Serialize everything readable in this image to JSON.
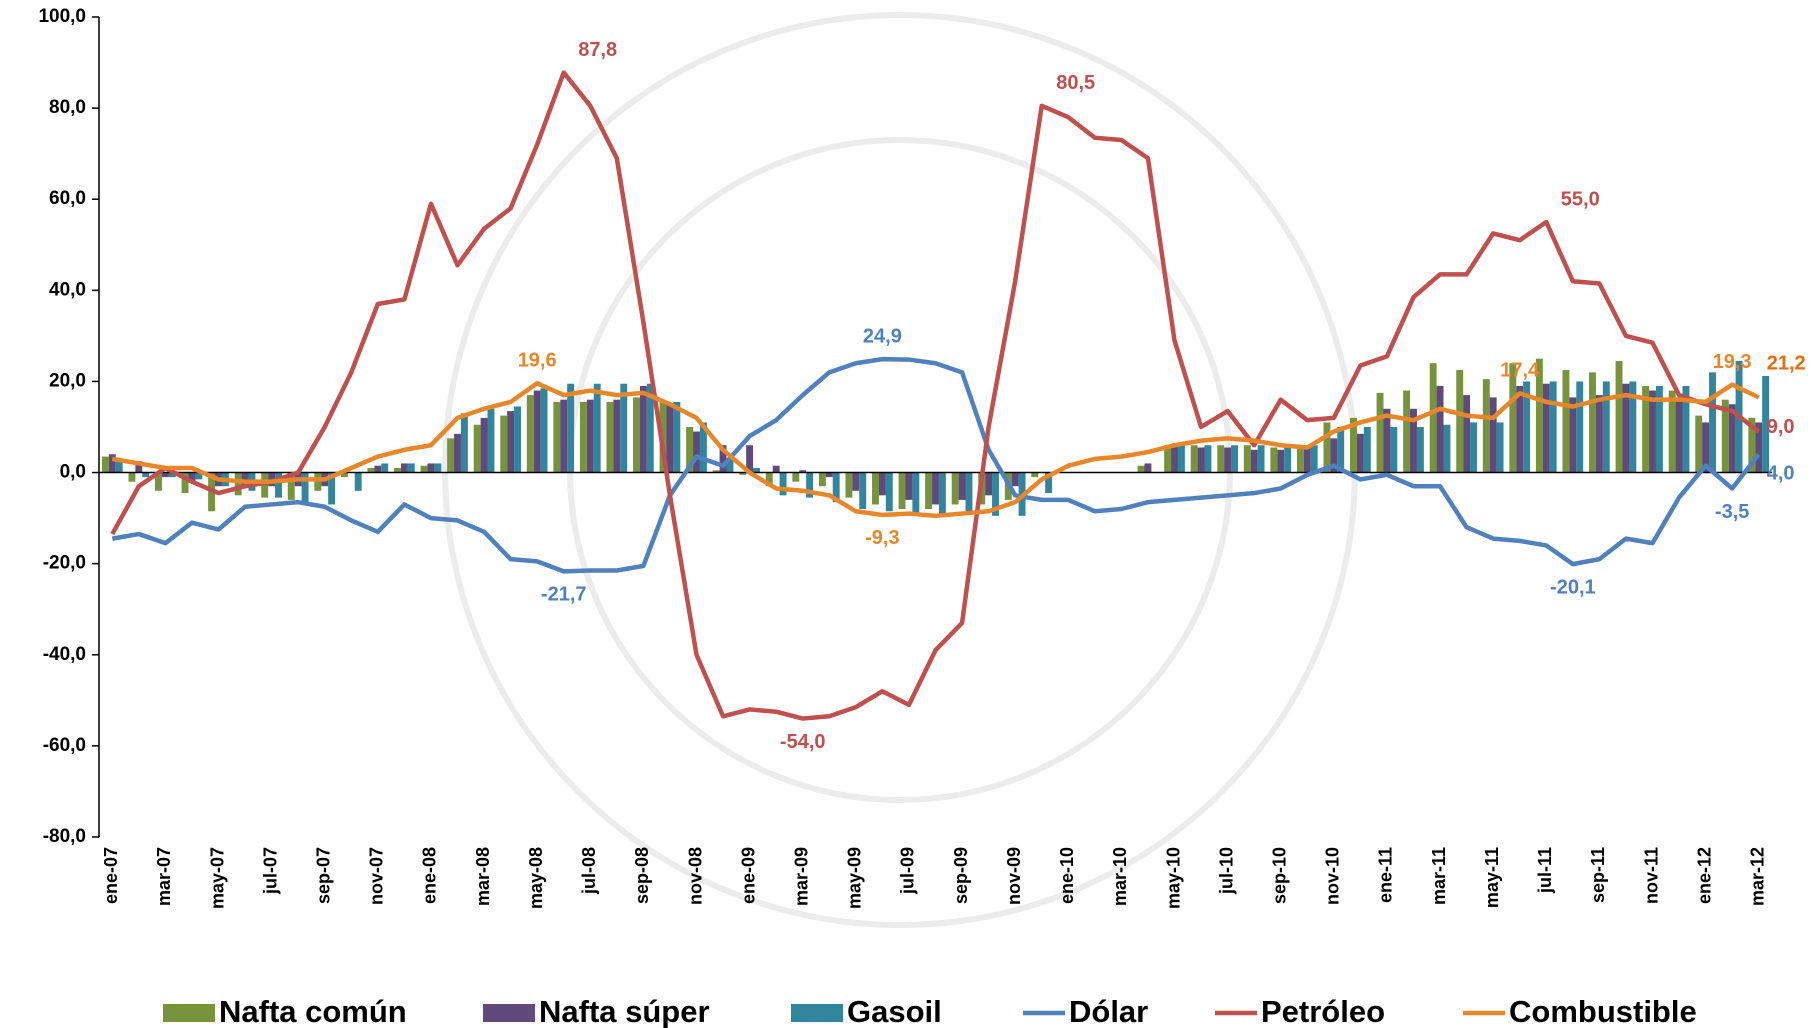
{
  "chart_data": {
    "type": "combo",
    "categories": [
      "ene-07",
      null,
      "mar-07",
      null,
      "may-07",
      null,
      "jul-07",
      null,
      "sep-07",
      null,
      "nov-07",
      null,
      "ene-08",
      null,
      "mar-08",
      null,
      "may-08",
      null,
      "jul-08",
      null,
      "sep-08",
      null,
      "nov-08",
      null,
      "ene-09",
      null,
      "mar-09",
      null,
      "may-09",
      null,
      "jul-09",
      null,
      "sep-09",
      null,
      "nov-09",
      null,
      "ene-10",
      null,
      "mar-10",
      null,
      "may-10",
      null,
      "jul-10",
      null,
      "sep-10",
      null,
      "nov-10",
      null,
      "ene-11",
      null,
      "mar-11",
      null,
      "may-11",
      null,
      "jul-11",
      null,
      "sep-11",
      null,
      "nov-11",
      null,
      "ene-12",
      null,
      "mar-12"
    ],
    "ylim": [
      -80,
      100
    ],
    "yticks": [
      {
        "value": -80,
        "label": "-80,0"
      },
      {
        "value": -60,
        "label": "-60,0"
      },
      {
        "value": -40,
        "label": "-40,0"
      },
      {
        "value": -20,
        "label": "-20,0"
      },
      {
        "value": 0,
        "label": "0,0"
      },
      {
        "value": 20,
        "label": "20,0"
      },
      {
        "value": 40,
        "label": "40,0"
      },
      {
        "value": 60,
        "label": "60,0"
      },
      {
        "value": 80,
        "label": "80,0"
      },
      {
        "value": 100,
        "label": "100,0"
      }
    ],
    "series": [
      {
        "name": "Nafta común",
        "type": "bar",
        "color": "#77933c",
        "values": [
          3.5,
          -2,
          -4,
          -4.5,
          -8.5,
          -5,
          -5.5,
          -6,
          -4,
          -1,
          1,
          1,
          1.5,
          7.5,
          10.5,
          12.5,
          17,
          15.5,
          15.5,
          15.5,
          16.5,
          15.5,
          10,
          0.5,
          -0.5,
          -3,
          -2,
          -3,
          -5.5,
          -7,
          -8,
          -8,
          -7,
          -7,
          -6,
          -1,
          0,
          0,
          0,
          1.5,
          6,
          6,
          6,
          6,
          5.5,
          6,
          11,
          12,
          17.5,
          18,
          24,
          22.5,
          20.5,
          24,
          25,
          22.5,
          22,
          24.5,
          19,
          18,
          12.5,
          16,
          12
        ]
      },
      {
        "name": "Nafta súper",
        "type": "bar",
        "color": "#604a7b",
        "values": [
          4,
          2.5,
          -1,
          -2,
          -3,
          -3,
          -3,
          -3,
          -3,
          0,
          1.5,
          2,
          2,
          8.5,
          12,
          13.5,
          18,
          16,
          16,
          16,
          19,
          15,
          9,
          6,
          6,
          1.5,
          0.5,
          -1,
          -4,
          -5,
          -6,
          -7,
          -6,
          -5,
          -3,
          0,
          0,
          0,
          0,
          2,
          6,
          5.5,
          5.5,
          5,
          5,
          5.5,
          7.5,
          8.5,
          14,
          14,
          19,
          17,
          16.5,
          19,
          19.5,
          16.5,
          17,
          19.5,
          18,
          16,
          11,
          15,
          11
        ]
      },
      {
        "name": "Gasoil",
        "type": "bar",
        "color": "#31859c",
        "label_color": "#e46c0a",
        "values": [
          3,
          -1,
          -1,
          -1.5,
          -3,
          -4,
          -5.5,
          -6.5,
          -7,
          -4,
          2,
          2,
          2,
          13,
          14,
          14.5,
          18.5,
          19.5,
          19.5,
          19.5,
          19.5,
          15.5,
          11,
          3,
          1,
          -5,
          -5.5,
          -6.5,
          -8,
          -8.5,
          -9,
          -9,
          -9,
          -9.5,
          -9.5,
          -4.5,
          0,
          0,
          0,
          0,
          6,
          6,
          6,
          6,
          6,
          6,
          10,
          10,
          10,
          10,
          10.5,
          11,
          11,
          20,
          20,
          20,
          20,
          20,
          19,
          19,
          22,
          24.5,
          21.2
        ],
        "value_labels": [
          null,
          null,
          null,
          null,
          null,
          null,
          null,
          null,
          null,
          null,
          null,
          null,
          null,
          null,
          null,
          null,
          null,
          null,
          null,
          null,
          null,
          null,
          null,
          null,
          null,
          null,
          null,
          null,
          null,
          null,
          null,
          null,
          null,
          null,
          null,
          null,
          null,
          null,
          null,
          null,
          null,
          null,
          null,
          null,
          null,
          null,
          null,
          null,
          null,
          null,
          null,
          null,
          null,
          null,
          null,
          null,
          null,
          null,
          null,
          null,
          null,
          null,
          "21,2"
        ]
      },
      {
        "name": "Dólar",
        "type": "line",
        "color": "#4f81bd",
        "values": [
          -14.5,
          -13.5,
          -15.5,
          -11,
          -12.5,
          -7.5,
          -7,
          -6.5,
          -7.5,
          -10.5,
          -13,
          -7,
          -10,
          -10.5,
          -13,
          -19,
          -19.5,
          -21.7,
          -21.5,
          -21.5,
          -20.5,
          -5,
          3.5,
          1.5,
          8,
          11.5,
          17,
          22,
          24,
          24.9,
          24.8,
          24,
          22,
          5,
          -5,
          -6,
          -6,
          -8.5,
          -8,
          -6.5,
          -6,
          -5.5,
          -5,
          -4.5,
          -3.5,
          -0.5,
          1.5,
          -1.5,
          -0.5,
          -3,
          -3,
          -12,
          -14.5,
          -15,
          -16,
          -20.1,
          -19,
          -14.5,
          -15.5,
          -5.5,
          1.5,
          -3.5,
          4.0
        ],
        "value_labels": [
          null,
          null,
          null,
          null,
          null,
          null,
          null,
          null,
          null,
          null,
          null,
          null,
          null,
          null,
          null,
          null,
          null,
          "-21,7",
          null,
          null,
          null,
          null,
          null,
          null,
          null,
          null,
          null,
          null,
          null,
          "24,9",
          null,
          null,
          null,
          null,
          null,
          null,
          null,
          null,
          null,
          null,
          null,
          null,
          null,
          null,
          null,
          null,
          null,
          null,
          null,
          null,
          null,
          null,
          null,
          null,
          null,
          "-20,1",
          null,
          null,
          null,
          null,
          null,
          "-3,5",
          "4,0"
        ]
      },
      {
        "name": "Petróleo",
        "type": "line",
        "color": "#c0504d",
        "values": [
          -13.5,
          -3,
          1,
          -2,
          -4.5,
          -3,
          -2,
          0,
          10,
          22,
          37,
          38,
          59,
          45.5,
          53.5,
          58,
          72,
          87.8,
          80.5,
          69,
          33,
          -5,
          -40,
          -53.5,
          -52,
          -52.5,
          -54.0,
          -53.5,
          -51.5,
          -48,
          -51,
          -39,
          -33,
          10,
          42,
          80.5,
          78,
          73.5,
          73,
          69,
          29,
          10,
          13.5,
          6,
          16,
          11.5,
          12,
          23.5,
          25.5,
          38.5,
          43.5,
          43.5,
          52.5,
          51,
          55.0,
          42,
          41.5,
          30,
          28.5,
          17,
          15,
          13.5,
          9.0
        ],
        "value_labels": [
          null,
          null,
          null,
          null,
          null,
          null,
          null,
          null,
          null,
          null,
          null,
          null,
          null,
          null,
          null,
          null,
          null,
          "87,8",
          null,
          null,
          null,
          null,
          null,
          null,
          null,
          null,
          "-54,0",
          null,
          null,
          null,
          null,
          null,
          null,
          null,
          null,
          "80,5",
          null,
          null,
          null,
          null,
          null,
          null,
          null,
          null,
          null,
          null,
          null,
          null,
          null,
          null,
          null,
          null,
          null,
          null,
          "55,0",
          null,
          null,
          null,
          null,
          null,
          null,
          null,
          "9,0"
        ]
      },
      {
        "name": "Combustible",
        "type": "line",
        "color": "#e8872a",
        "values": [
          3,
          2,
          1,
          1,
          -1.5,
          -2,
          -2,
          -1.5,
          -1.5,
          1,
          3.5,
          5,
          6,
          12,
          14,
          15.5,
          19.6,
          17,
          18,
          17,
          17.5,
          15,
          12,
          5,
          0,
          -3.5,
          -4,
          -5,
          -8.5,
          -9.3,
          -9,
          -9.5,
          -9,
          -8.5,
          -6.5,
          -1.5,
          1.5,
          3,
          3.5,
          4.5,
          6,
          7,
          7.5,
          7,
          6,
          5.5,
          9,
          11,
          12.5,
          11.5,
          14,
          12.5,
          12,
          17.4,
          15.5,
          14.5,
          16,
          17,
          16,
          16,
          15.5,
          19.3,
          16.5
        ],
        "value_labels": [
          null,
          null,
          null,
          null,
          null,
          null,
          null,
          null,
          null,
          null,
          null,
          null,
          null,
          null,
          null,
          null,
          "19,6",
          null,
          null,
          null,
          null,
          null,
          null,
          null,
          null,
          null,
          null,
          null,
          null,
          "-9,3",
          null,
          null,
          null,
          null,
          null,
          null,
          null,
          null,
          null,
          null,
          null,
          null,
          null,
          null,
          null,
          null,
          null,
          null,
          null,
          null,
          null,
          null,
          null,
          "17,4",
          null,
          null,
          null,
          null,
          null,
          null,
          null,
          "19,3",
          null
        ]
      }
    ],
    "legend": "bottom"
  }
}
